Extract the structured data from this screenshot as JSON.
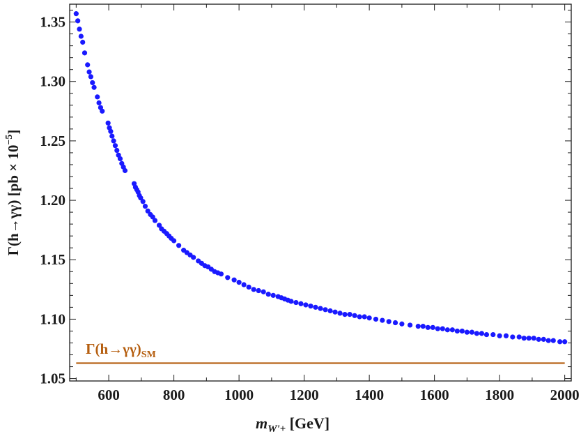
{
  "chart_data": {
    "type": "scatter",
    "title": "",
    "xlabel": {
      "symbol": "m",
      "subscript": "W'+",
      "unit": "[GeV]"
    },
    "ylabel": {
      "prefix": "Γ(h→γγ) [pb × 10",
      "exponent": "−5",
      "suffix": "]"
    },
    "xlim": [
      480,
      2020
    ],
    "ylim": [
      1.048,
      1.365
    ],
    "x_ticks": [
      600,
      800,
      1000,
      1200,
      1400,
      1600,
      1800,
      2000
    ],
    "y_ticks": [
      1.05,
      1.1,
      1.15,
      1.2,
      1.25,
      1.3,
      1.35
    ],
    "y_tick_labels": [
      "1.05",
      "1.10",
      "1.15",
      "1.20",
      "1.25",
      "1.30",
      "1.35"
    ],
    "series": [
      {
        "name": "Γ(h→γγ)",
        "color": "#1a1aff",
        "x": [
          500,
          505,
          510,
          515,
          520,
          526,
          535,
          540,
          545,
          550,
          555,
          565,
          570,
          575,
          580,
          598,
          602,
          606,
          610,
          615,
          620,
          625,
          630,
          635,
          640,
          645,
          650,
          678,
          682,
          686,
          690,
          694,
          698,
          705,
          712,
          720,
          728,
          735,
          742,
          755,
          762,
          770,
          778,
          785,
          792,
          800,
          815,
          830,
          840,
          850,
          860,
          875,
          885,
          895,
          905,
          915,
          925,
          935,
          945,
          965,
          985,
          1000,
          1015,
          1030,
          1045,
          1060,
          1075,
          1090,
          1105,
          1120,
          1130,
          1140,
          1150,
          1160,
          1175,
          1190,
          1205,
          1220,
          1235,
          1250,
          1265,
          1280,
          1295,
          1310,
          1325,
          1340,
          1355,
          1370,
          1385,
          1400,
          1420,
          1440,
          1460,
          1480,
          1500,
          1525,
          1550,
          1565,
          1580,
          1595,
          1610,
          1625,
          1640,
          1655,
          1670,
          1685,
          1700,
          1715,
          1730,
          1745,
          1760,
          1780,
          1800,
          1820,
          1840,
          1860,
          1875,
          1890,
          1905,
          1920,
          1935,
          1950,
          1965,
          1985,
          2000
        ],
        "y": [
          1.357,
          1.351,
          1.344,
          1.338,
          1.333,
          1.324,
          1.314,
          1.308,
          1.304,
          1.299,
          1.295,
          1.287,
          1.282,
          1.278,
          1.275,
          1.265,
          1.261,
          1.258,
          1.254,
          1.25,
          1.246,
          1.242,
          1.238,
          1.235,
          1.231,
          1.228,
          1.225,
          1.214,
          1.211,
          1.209,
          1.207,
          1.204,
          1.202,
          1.199,
          1.195,
          1.191,
          1.188,
          1.186,
          1.183,
          1.179,
          1.176,
          1.174,
          1.172,
          1.17,
          1.168,
          1.166,
          1.162,
          1.158,
          1.156,
          1.154,
          1.152,
          1.149,
          1.147,
          1.145,
          1.144,
          1.142,
          1.14,
          1.139,
          1.138,
          1.135,
          1.133,
          1.131,
          1.129,
          1.127,
          1.125,
          1.124,
          1.123,
          1.121,
          1.12,
          1.119,
          1.118,
          1.117,
          1.116,
          1.115,
          1.114,
          1.113,
          1.112,
          1.111,
          1.11,
          1.109,
          1.108,
          1.107,
          1.106,
          1.105,
          1.104,
          1.104,
          1.103,
          1.102,
          1.102,
          1.101,
          1.1,
          1.099,
          1.098,
          1.097,
          1.096,
          1.095,
          1.094,
          1.094,
          1.093,
          1.093,
          1.092,
          1.092,
          1.091,
          1.091,
          1.09,
          1.09,
          1.089,
          1.089,
          1.088,
          1.088,
          1.087,
          1.087,
          1.086,
          1.086,
          1.085,
          1.085,
          1.084,
          1.084,
          1.084,
          1.083,
          1.083,
          1.082,
          1.082,
          1.081,
          1.081
        ]
      }
    ],
    "reference_line": {
      "value": 1.063,
      "color": "#b55e0f",
      "label": "Γ(h→γγ)",
      "label_subscript": "SM",
      "label_at_x": 600,
      "label_at_y": 1.075
    }
  }
}
